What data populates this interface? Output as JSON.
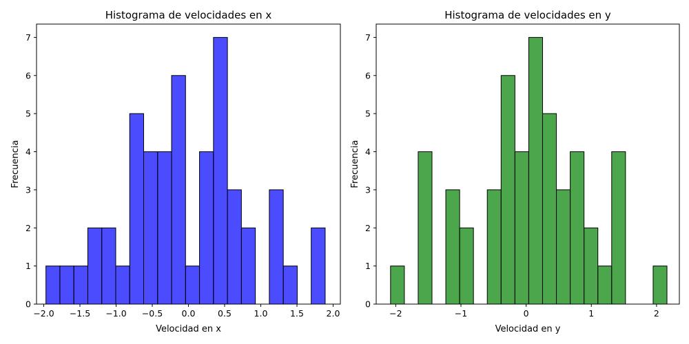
{
  "chart_data": [
    {
      "type": "bar",
      "title": "Histograma de velocidades en x",
      "xlabel": "Velocidad en x",
      "ylabel": "Frecuencia",
      "xlim": [
        -2.1,
        2.1
      ],
      "ylim": [
        0,
        7.35
      ],
      "xticks": [
        -2.0,
        -1.5,
        -1.0,
        -0.5,
        0.0,
        0.5,
        1.0,
        1.5,
        2.0
      ],
      "xtick_labels": [
        "−2.0",
        "−1.5",
        "−1.0",
        "−0.5",
        "0.0",
        "0.5",
        "1.0",
        "1.5",
        "2.0"
      ],
      "yticks": [
        0,
        1,
        2,
        3,
        4,
        5,
        6,
        7
      ],
      "ytick_labels": [
        "0",
        "1",
        "2",
        "3",
        "4",
        "5",
        "6",
        "7"
      ],
      "bin_edges": [
        -1.97,
        -1.777,
        -1.584,
        -1.391,
        -1.198,
        -1.005,
        -0.812,
        -0.619,
        -0.426,
        -0.233,
        -0.04,
        0.153,
        0.346,
        0.539,
        0.732,
        0.925,
        1.118,
        1.311,
        1.504,
        1.697,
        1.89
      ],
      "values": [
        1,
        1,
        1,
        2,
        2,
        1,
        5,
        4,
        4,
        6,
        1,
        4,
        7,
        3,
        2,
        0,
        3,
        1,
        0,
        2
      ],
      "bar_color": "#0000ff",
      "bar_alpha": 0.7,
      "edge_color": "#000000",
      "grid": false
    },
    {
      "type": "bar",
      "title": "Histograma de velocidades en y",
      "xlabel": "Velocidad en y",
      "ylabel": "Frecuencia",
      "xlim": [
        -2.3,
        2.35
      ],
      "ylim": [
        0,
        7.35
      ],
      "xticks": [
        -2,
        -1,
        0,
        1,
        2
      ],
      "xtick_labels": [
        "−2",
        "−1",
        "0",
        "1",
        "2"
      ],
      "yticks": [
        0,
        1,
        2,
        3,
        4,
        5,
        6,
        7
      ],
      "ytick_labels": [
        "0",
        "1",
        "2",
        "3",
        "4",
        "5",
        "6",
        "7"
      ],
      "bin_edges": [
        -2.08,
        -1.868,
        -1.656,
        -1.444,
        -1.232,
        -1.02,
        -0.808,
        -0.596,
        -0.384,
        -0.172,
        0.04,
        0.252,
        0.464,
        0.676,
        0.888,
        1.1,
        1.312,
        1.524,
        1.736,
        1.948,
        2.16
      ],
      "values": [
        1,
        0,
        4,
        0,
        3,
        2,
        0,
        3,
        6,
        4,
        7,
        5,
        3,
        4,
        2,
        1,
        4,
        0,
        0,
        1
      ],
      "bar_color": "#008000",
      "bar_alpha": 0.7,
      "edge_color": "#000000",
      "grid": false
    }
  ]
}
